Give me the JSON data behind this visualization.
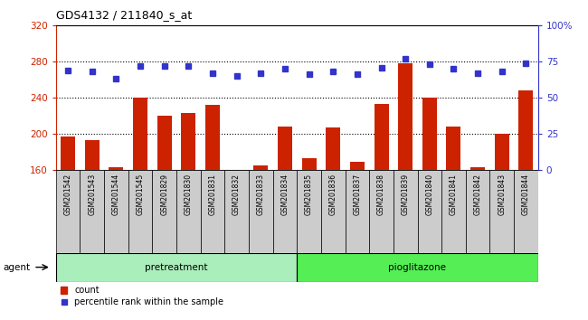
{
  "title": "GDS4132 / 211840_s_at",
  "categories": [
    "GSM201542",
    "GSM201543",
    "GSM201544",
    "GSM201545",
    "GSM201829",
    "GSM201830",
    "GSM201831",
    "GSM201832",
    "GSM201833",
    "GSM201834",
    "GSM201835",
    "GSM201836",
    "GSM201837",
    "GSM201838",
    "GSM201839",
    "GSM201840",
    "GSM201841",
    "GSM201842",
    "GSM201843",
    "GSM201844"
  ],
  "counts": [
    197,
    193,
    163,
    240,
    220,
    223,
    232,
    160,
    165,
    208,
    173,
    207,
    169,
    233,
    278,
    240,
    208,
    163,
    200,
    248
  ],
  "percentile_ranks": [
    69,
    68,
    63,
    72,
    72,
    72,
    67,
    65,
    67,
    70,
    66,
    68,
    66,
    71,
    77,
    73,
    70,
    67,
    68,
    74
  ],
  "pretreatment_count": 10,
  "pioglitazone_count": 10,
  "ylim_left": [
    160,
    320
  ],
  "ylim_right": [
    0,
    100
  ],
  "yticks_left": [
    160,
    200,
    240,
    280,
    320
  ],
  "yticks_right": [
    0,
    25,
    50,
    75,
    100
  ],
  "bar_color": "#cc2200",
  "dot_color": "#3333cc",
  "pretreatment_color": "#aaeebb",
  "pioglitazone_color": "#55ee55",
  "tickbox_color": "#cccccc",
  "ylabel_left_color": "#cc2200",
  "ylabel_right_color": "#3333cc",
  "bar_width": 0.6,
  "dot_size": 5,
  "grid_dotted_color": "#000000",
  "legend_count_color": "#cc2200",
  "legend_pct_color": "#3333cc"
}
